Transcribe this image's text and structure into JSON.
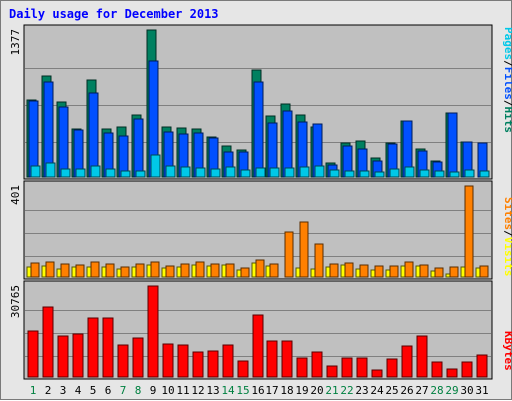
{
  "page": {
    "title": "Daily usage for December 2013"
  },
  "colors": {
    "panel_bg": "#c0c0c0",
    "pages": "#00c8e8",
    "files": "#0050ff",
    "hits": "#008060",
    "visits": "#ffff00",
    "sites": "#ff8000",
    "kbytes": "#ff0000",
    "weekend_label": "#008040",
    "weekday_label": "#000000",
    "title": "#0000ff"
  },
  "chart_data": [
    {
      "type": "bar",
      "panel": "hits-files-pages",
      "y_max_label": "1377",
      "ylim": [
        0,
        1377
      ],
      "legend": [
        {
          "name": "Pages",
          "color": "#00c8e8"
        },
        {
          "name": "Files",
          "color": "#0050ff"
        },
        {
          "name": "Hits",
          "color": "#008060"
        }
      ],
      "series": [
        {
          "name": "Hits",
          "values": [
            723,
            948,
            704,
            450,
            913,
            449,
            473,
            581,
            1377,
            467,
            463,
            451,
            377,
            286,
            256,
            999,
            568,
            688,
            578,
            465,
            134,
            320,
            333,
            175,
            320,
            526,
            262,
            152,
            603,
            324,
            0
          ]
        },
        {
          "name": "Files",
          "values": [
            713,
            893,
            653,
            439,
            791,
            415,
            381,
            547,
            1082,
            423,
            406,
            409,
            366,
            235,
            234,
            887,
            506,
            615,
            518,
            496,
            117,
            286,
            264,
            154,
            311,
            526,
            241,
            143,
            602,
            324,
            321
          ]
        },
        {
          "name": "Pages",
          "values": [
            101,
            128,
            74,
            71,
            101,
            76,
            55,
            60,
            203,
            101,
            92,
            84,
            74,
            96,
            65,
            84,
            82,
            86,
            93,
            99,
            65,
            60,
            58,
            44,
            74,
            97,
            67,
            58,
            46,
            62,
            56
          ]
        }
      ],
      "x": [
        1,
        2,
        3,
        4,
        5,
        6,
        7,
        8,
        9,
        10,
        11,
        12,
        13,
        14,
        15,
        16,
        17,
        18,
        19,
        20,
        21,
        22,
        23,
        24,
        25,
        26,
        27,
        28,
        29,
        30,
        31
      ],
      "grid": true
    },
    {
      "type": "bar",
      "panel": "visits-sites",
      "y_max_label": "401",
      "ylim": [
        0,
        401
      ],
      "legend": [
        {
          "name": "Sites",
          "color": "#ff8000"
        },
        {
          "name": "Visits",
          "color": "#ffff00"
        }
      ],
      "series": [
        {
          "name": "Visits",
          "values": [
            45,
            50,
            35,
            43,
            45,
            45,
            35,
            44,
            54,
            40,
            46,
            54,
            50,
            52,
            30,
            60,
            47,
            0,
            41,
            37,
            45,
            52,
            34,
            33,
            31,
            47,
            50,
            25,
            15,
            44,
            40
          ]
        },
        {
          "name": "Sites",
          "values": [
            60,
            68,
            57,
            55,
            67,
            56,
            45,
            58,
            64,
            48,
            57,
            64,
            58,
            56,
            40,
            77,
            57,
            200,
            242,
            147,
            57,
            60,
            54,
            50,
            50,
            66,
            53,
            41,
            42,
            401,
            48
          ]
        }
      ],
      "x": [
        1,
        2,
        3,
        4,
        5,
        6,
        7,
        8,
        9,
        10,
        11,
        12,
        13,
        14,
        15,
        16,
        17,
        18,
        19,
        20,
        21,
        22,
        23,
        24,
        25,
        26,
        27,
        28,
        29,
        30,
        31
      ],
      "grid": true
    },
    {
      "type": "bar",
      "panel": "kbytes",
      "y_max_label": "30765",
      "ylim": [
        0,
        30765
      ],
      "legend": [
        {
          "name": "KBytes",
          "color": "#ff0000"
        }
      ],
      "series": [
        {
          "name": "KBytes",
          "values": [
            15450,
            23550,
            13920,
            14470,
            19860,
            19900,
            10900,
            13240,
            30765,
            11270,
            10760,
            8490,
            8780,
            10850,
            5400,
            21040,
            12210,
            12200,
            6390,
            8380,
            3750,
            6520,
            6390,
            2260,
            6170,
            10330,
            13850,
            4990,
            2850,
            5130,
            7540
          ]
        }
      ],
      "x": [
        1,
        2,
        3,
        4,
        5,
        6,
        7,
        8,
        9,
        10,
        11,
        12,
        13,
        14,
        15,
        16,
        17,
        18,
        19,
        20,
        21,
        22,
        23,
        24,
        25,
        26,
        27,
        28,
        29,
        30,
        31
      ],
      "grid": true
    }
  ],
  "x_axis": {
    "labels": [
      "1",
      "2",
      "3",
      "4",
      "5",
      "6",
      "7",
      "8",
      "9",
      "10",
      "11",
      "12",
      "13",
      "14",
      "15",
      "16",
      "17",
      "18",
      "19",
      "20",
      "21",
      "22",
      "23",
      "24",
      "25",
      "26",
      "27",
      "28",
      "29",
      "30",
      "31"
    ],
    "weekend": [
      1,
      7,
      8,
      14,
      15,
      21,
      22,
      28,
      29
    ]
  }
}
